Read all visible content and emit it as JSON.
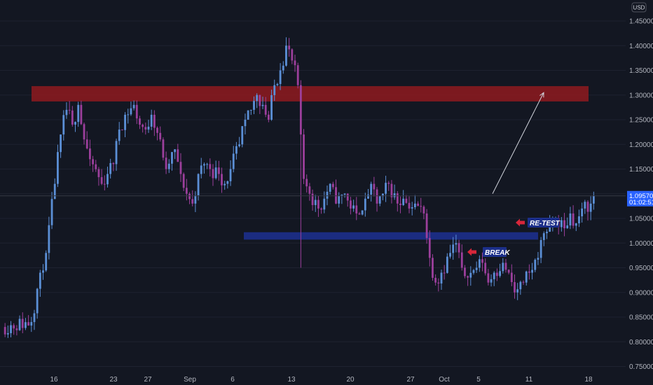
{
  "chart_data": {
    "type": "candlestick",
    "currency": "USD",
    "ylim": [
      0.72,
      1.48
    ],
    "y_ticks": [
      "1.45000",
      "1.40000",
      "1.35000",
      "1.30000",
      "1.25000",
      "1.20000",
      "1.15000",
      "1.10000",
      "1.05000",
      "1.00000",
      "0.95000",
      "0.90000",
      "0.85000",
      "0.80000",
      "0.75000"
    ],
    "x_ticks": [
      "16",
      "23",
      "27",
      "Sep",
      "6",
      "13",
      "20",
      "27",
      "Oct",
      "5",
      "11",
      "18"
    ],
    "last_price": "1.09570",
    "countdown": "01:02:51",
    "resistance_zone": {
      "low": 1.287,
      "high": 1.318
    },
    "support_zone": {
      "low": 1.007,
      "high": 1.022
    },
    "annotations": {
      "retest": "RE-TEST",
      "break": "BREAK"
    },
    "projection": {
      "from": 1.1,
      "to": 1.305
    },
    "colors": {
      "background": "#131722",
      "up": "#5b8fd6",
      "down": "#9c3f9c",
      "resistance": "#8b1a1f",
      "support": "#1c2f8a",
      "label_bg": "#1c2f8a",
      "arrow": "#d8263a",
      "badge": "#2962ff"
    },
    "segments": [
      {
        "start": 0.83,
        "points": [
          [
            10,
            0.84
          ],
          [
            13,
            0.94
          ],
          [
            15,
            0.98
          ],
          [
            18,
            1.12
          ],
          [
            20,
            1.22
          ],
          [
            22,
            1.27
          ],
          [
            24,
            1.24
          ],
          [
            26,
            1.28
          ],
          [
            28,
            1.21
          ],
          [
            30,
            1.17
          ],
          [
            34,
            1.12
          ],
          [
            36,
            1.14
          ],
          [
            38,
            1.16
          ],
          [
            40,
            1.23
          ],
          [
            42,
            1.26
          ],
          [
            45,
            1.28
          ],
          [
            47,
            1.24
          ],
          [
            49,
            1.23
          ],
          [
            51,
            1.26
          ],
          [
            54,
            1.21
          ],
          [
            56,
            1.15
          ],
          [
            59,
            1.19
          ],
          [
            61,
            1.14
          ],
          [
            63,
            1.1
          ],
          [
            65,
            1.08
          ],
          [
            67,
            1.14
          ],
          [
            69,
            1.16
          ],
          [
            71,
            1.15
          ],
          [
            74,
            1.14
          ],
          [
            76,
            1.12
          ],
          [
            78,
            1.15
          ],
          [
            81,
            1.2
          ],
          [
            83,
            1.25
          ],
          [
            85,
            1.27
          ],
          [
            87,
            1.3
          ],
          [
            89,
            1.28
          ],
          [
            91,
            1.25
          ],
          [
            93,
            1.32
          ],
          [
            95,
            1.35
          ],
          [
            97,
            1.4
          ],
          [
            99,
            1.37
          ],
          [
            101,
            1.32
          ]
        ]
      },
      {
        "start": 1.22,
        "points": [
          [
            103,
            1.13
          ],
          [
            105,
            1.1
          ],
          [
            108,
            1.07
          ],
          [
            110,
            1.09
          ],
          [
            112,
            1.12
          ],
          [
            114,
            1.08
          ],
          [
            117,
            1.1
          ],
          [
            119,
            1.07
          ],
          [
            121,
            1.06
          ],
          [
            124,
            1.09
          ],
          [
            126,
            1.12
          ],
          [
            128,
            1.08
          ],
          [
            130,
            1.1
          ],
          [
            132,
            1.12
          ],
          [
            135,
            1.08
          ],
          [
            137,
            1.09
          ],
          [
            139,
            1.07
          ],
          [
            141,
            1.08
          ],
          [
            144,
            1.06
          ],
          [
            146,
            0.97
          ],
          [
            148,
            0.92
          ],
          [
            150,
            0.94
          ],
          [
            153,
            0.98
          ],
          [
            155,
            1.0
          ],
          [
            157,
            0.95
          ],
          [
            159,
            0.93
          ],
          [
            162,
            0.95
          ],
          [
            164,
            0.96
          ],
          [
            166,
            0.92
          ],
          [
            168,
            0.94
          ],
          [
            171,
            0.96
          ],
          [
            173,
            0.94
          ],
          [
            175,
            0.9
          ],
          [
            178,
            0.92
          ],
          [
            180,
            0.94
          ],
          [
            183,
            0.97
          ],
          [
            185,
            1.02
          ],
          [
            187,
            1.04
          ],
          [
            189,
            1.05
          ],
          [
            192,
            1.03
          ],
          [
            194,
            1.06
          ],
          [
            196,
            1.04
          ],
          [
            198,
            1.07
          ],
          [
            201,
            1.08
          ],
          [
            202,
            1.096
          ]
        ]
      }
    ]
  }
}
